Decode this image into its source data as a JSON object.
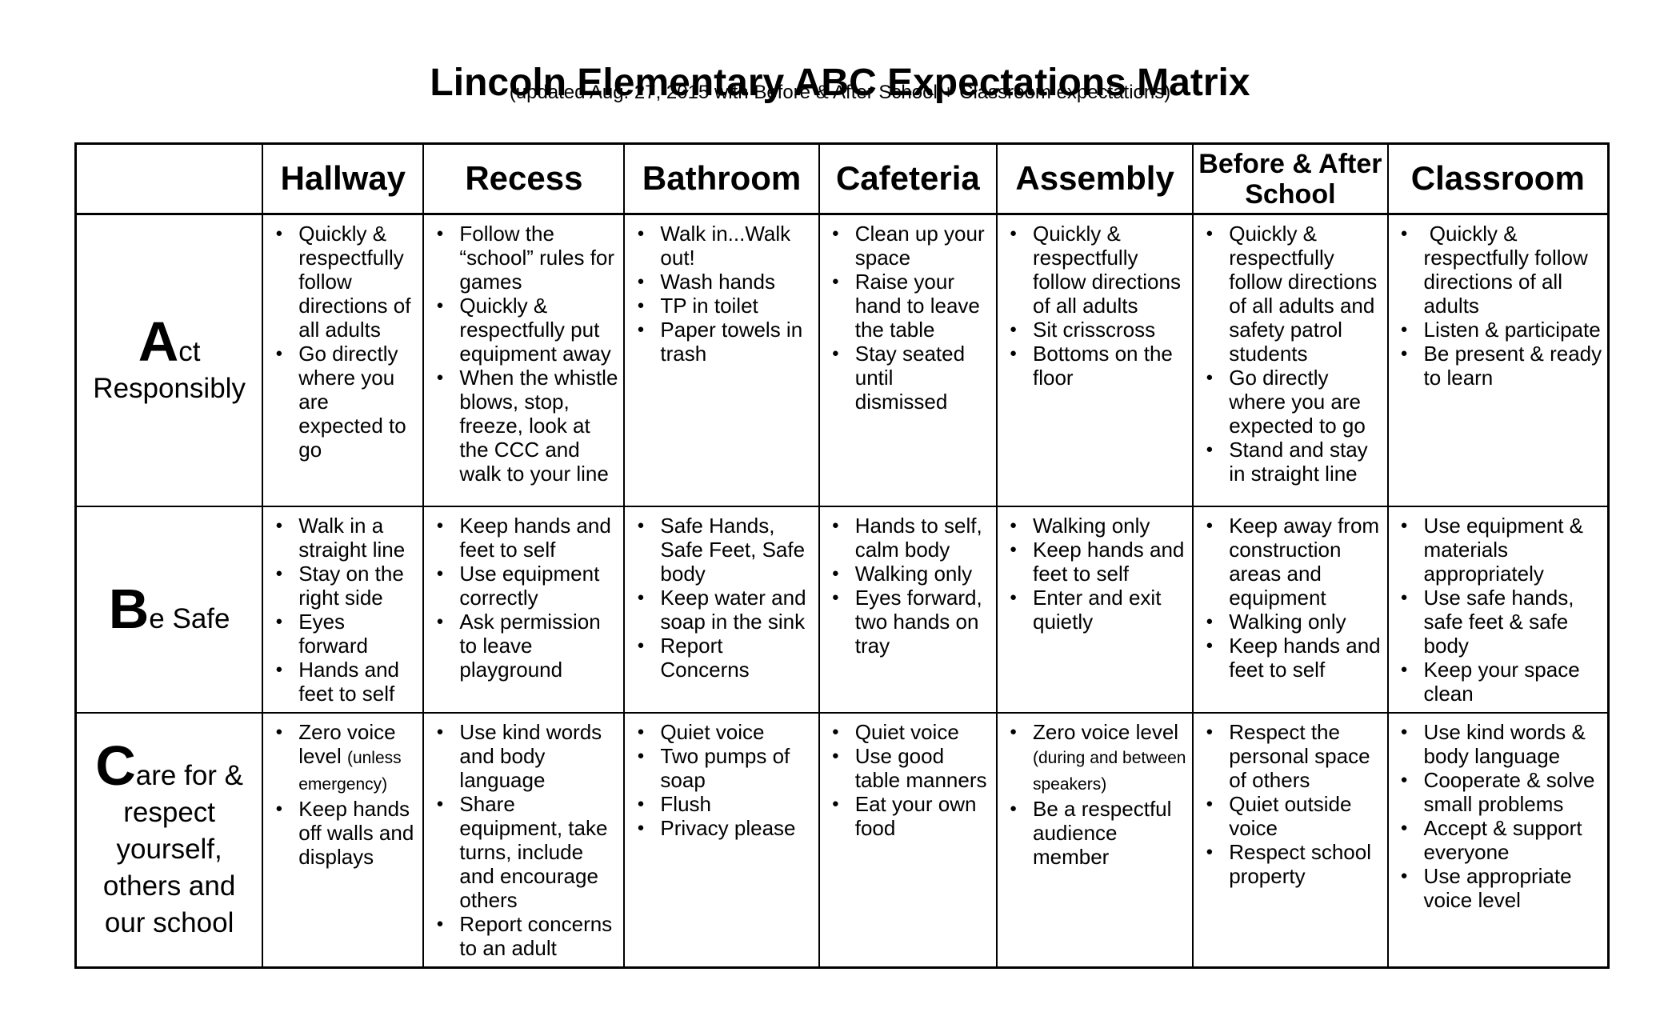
{
  "page": {
    "title": "Lincoln Elementary ABC Expectations Matrix",
    "subtitle": "(updated Aug. 27, 2015 with Before & After School + Classroom expectations)"
  },
  "table": {
    "columns": [
      "",
      "Hallway",
      "Recess",
      "Bathroom",
      "Cafeteria",
      "Assembly",
      "Before & After School",
      "Classroom"
    ],
    "rows": [
      {
        "label_big": "A",
        "label_rest": "ct Responsibly",
        "cells": [
          [
            "Quickly & respectfully follow directions of all adults",
            "Go directly where you are expected to go"
          ],
          [
            "Follow the “school” rules for games",
            "Quickly & respectfully put equipment away",
            "When the whistle blows, stop, freeze, look at the CCC and walk to your line"
          ],
          [
            "Walk in...Walk out!",
            "Wash hands",
            "TP in toilet",
            "Paper towels in trash"
          ],
          [
            "Clean up your space",
            "Raise your hand to leave the table",
            "Stay seated until dismissed"
          ],
          [
            "Quickly & respectfully follow directions of all adults",
            "Sit crisscross",
            "Bottoms on the floor"
          ],
          [
            "Quickly & respectfully follow directions of all adults and safety patrol students",
            "Go directly where you are expected to go",
            "Stand and stay in straight line"
          ],
          [
            " Quickly & respectfully follow directions of all adults",
            "Listen & participate",
            "Be present & ready to learn"
          ]
        ]
      },
      {
        "label_big": "B",
        "label_rest": "e Safe",
        "cells": [
          [
            "Walk in a straight line",
            "Stay on the right side",
            "Eyes forward",
            "Hands and feet to self"
          ],
          [
            "Keep hands and feet to self",
            "Use equipment correctly",
            "Ask permission to leave playground"
          ],
          [
            "Safe Hands, Safe Feet, Safe body",
            "Keep water and soap in the sink",
            "Report Concerns"
          ],
          [
            "Hands to self, calm body",
            "Walking only",
            "Eyes forward, two hands on tray"
          ],
          [
            "Walking only",
            "Keep hands and feet to self",
            "Enter and exit quietly"
          ],
          [
            "Keep away from construction areas and equipment",
            "Walking only",
            "Keep hands and feet to self"
          ],
          [
            "Use equipment & materials appropriately",
            "Use safe hands, safe feet & safe body",
            "Keep your space clean"
          ]
        ]
      },
      {
        "label_big": "C",
        "label_rest": "are for & respect yourself, others and our school",
        "cells": [
          [
            {
              "text": "Zero voice level ",
              "small": "(unless emergency)"
            },
            "Keep hands off walls and displays"
          ],
          [
            "Use kind words and body language",
            "Share equipment, take turns, include and encourage others",
            "Report concerns to an adult"
          ],
          [
            "Quiet voice",
            "Two pumps of soap",
            "Flush",
            "Privacy please"
          ],
          [
            "Quiet voice",
            "Use good table manners",
            "Eat your own food"
          ],
          [
            {
              "text": "Zero voice level ",
              "small": "(during and between speakers)"
            },
            "Be a respectful audience member"
          ],
          [
            "Respect the personal space of others",
            "Quiet outside voice",
            "Respect school property"
          ],
          [
            "Use kind words & body language",
            "Cooperate & solve small problems",
            "Accept & support everyone",
            "Use appropriate voice level"
          ]
        ]
      }
    ]
  }
}
